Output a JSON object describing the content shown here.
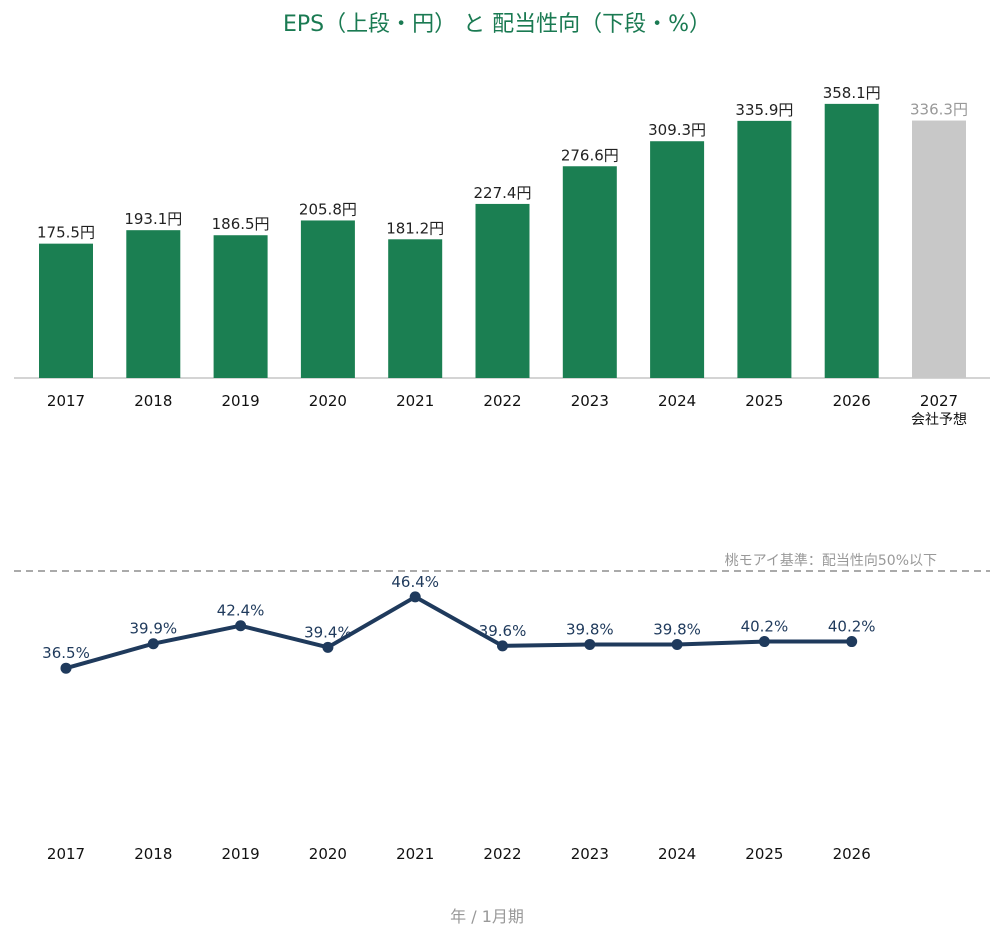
{
  "chart_data": [
    {
      "type": "bar",
      "title": "EPS（上段・円） と 配当性向（下段・%）",
      "categories": [
        "2017",
        "2018",
        "2019",
        "2020",
        "2021",
        "2022",
        "2023",
        "2024",
        "2025",
        "2026",
        "2027"
      ],
      "category_sublabels": [
        "",
        "",
        "",
        "",
        "",
        "",
        "",
        "",
        "",
        "",
        "会社予想"
      ],
      "values": [
        175.5,
        193.1,
        186.5,
        205.8,
        181.2,
        227.4,
        276.6,
        309.3,
        335.9,
        358.1,
        336.3
      ],
      "value_labels": [
        "175.5円",
        "193.1円",
        "186.5円",
        "205.8円",
        "181.2円",
        "227.4円",
        "276.6円",
        "309.3円",
        "335.9円",
        "358.1円",
        "336.3円"
      ],
      "forecast": [
        false,
        false,
        false,
        false,
        false,
        false,
        false,
        false,
        false,
        false,
        true
      ],
      "colors": {
        "actual": "#1b7f52",
        "forecast": "#c8c8c8",
        "axis": "#aaaaaa"
      },
      "ylim": [
        0,
        380
      ]
    },
    {
      "type": "line",
      "categories": [
        "2017",
        "2018",
        "2019",
        "2020",
        "2021",
        "2022",
        "2023",
        "2024",
        "2025",
        "2026"
      ],
      "values": [
        36.5,
        39.9,
        42.4,
        39.4,
        46.4,
        39.6,
        39.8,
        39.8,
        40.2,
        40.2
      ],
      "value_labels": [
        "36.5%",
        "39.9%",
        "42.4%",
        "39.4%",
        "46.4%",
        "39.6%",
        "39.8%",
        "39.8%",
        "40.2%",
        "40.2%"
      ],
      "reference_line": {
        "value": 50,
        "label": "桃モアイ基準：配当性向50%以下"
      },
      "colors": {
        "line": "#1f3a5c",
        "reference": "#aaaaaa"
      },
      "xlabel": "年 / 1月期"
    }
  ]
}
